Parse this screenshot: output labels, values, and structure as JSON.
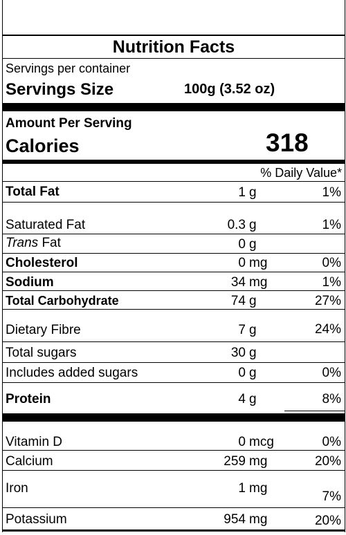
{
  "title": "Nutrition Facts",
  "servings_per_container": "Servings per container",
  "serving_size_label": "Servings Size",
  "serving_size_value": "100g (3.52 oz)",
  "amount_per_serving": "Amount Per Serving",
  "calories_label": "Calories",
  "calories_value": "318",
  "daily_value_header": "% Daily Value*",
  "nutrients": {
    "total_fat": {
      "label": "Total Fat",
      "amount": "1",
      "unit": "g",
      "dv": "1%"
    },
    "saturated_fat": {
      "label": "Saturated Fat",
      "amount": "0.3",
      "unit": "g",
      "dv": "1%"
    },
    "trans_fat": {
      "label_italic": "Trans",
      "label_rest": "Fat",
      "amount": "0",
      "unit": "g",
      "dv": ""
    },
    "cholesterol": {
      "label": "Cholesterol",
      "amount": "0",
      "unit": "mg",
      "dv": "0%"
    },
    "sodium": {
      "label": "Sodium",
      "amount": "34",
      "unit": "mg",
      "dv": "1%"
    },
    "total_carb": {
      "label": "Total Carbohydrate",
      "amount": "74",
      "unit": "g",
      "dv": "27%"
    },
    "dietary_fibre": {
      "label": "Dietary Fibre",
      "amount": "7",
      "unit": "g",
      "dv": "24%"
    },
    "total_sugars": {
      "label": "Total sugars",
      "amount": "30",
      "unit": "g",
      "dv": ""
    },
    "added_sugars": {
      "label": "Includes added sugars",
      "amount": "0",
      "unit": "g",
      "dv": "0%"
    },
    "protein": {
      "label": "Protein",
      "amount": "4",
      "unit": "g",
      "dv": "8%"
    },
    "vitamin_d": {
      "label": "Vitamin D",
      "amount": "0",
      "unit": "mcg",
      "dv": "0%"
    },
    "calcium": {
      "label": "Calcium",
      "amount": "259",
      "unit": "mg",
      "dv": "20%"
    },
    "iron": {
      "label": "Iron",
      "amount": "1",
      "unit": "mg",
      "dv": "7%"
    },
    "potassium": {
      "label": "Potassium",
      "amount": "954",
      "unit": "mg",
      "dv": "20%"
    }
  }
}
